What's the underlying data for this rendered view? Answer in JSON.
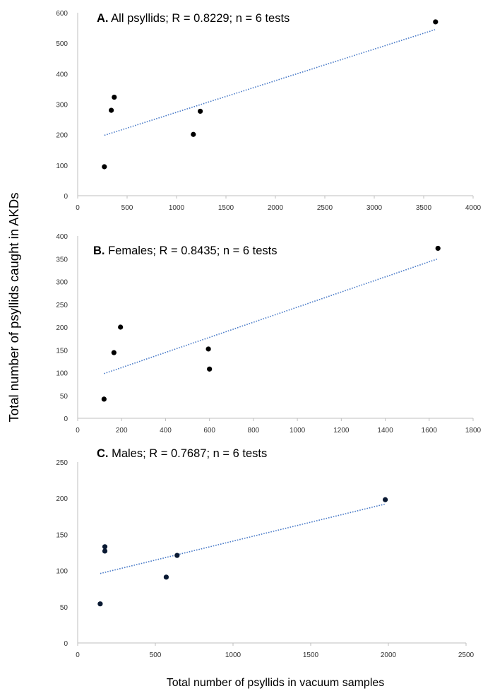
{
  "chart_data": [
    {
      "type": "scatter",
      "panel_letter": "A",
      "title": "All psyllids; R = 0.8229; n = 6 tests",
      "xlim": [
        0,
        4000
      ],
      "ylim": [
        0,
        600
      ],
      "xticks": [
        0,
        500,
        1000,
        1500,
        2000,
        2500,
        3000,
        3500,
        4000
      ],
      "yticks": [
        0,
        100,
        200,
        300,
        400,
        500,
        600
      ],
      "points": [
        {
          "x": 270,
          "y": 95
        },
        {
          "x": 340,
          "y": 280
        },
        {
          "x": 370,
          "y": 323
        },
        {
          "x": 1170,
          "y": 201
        },
        {
          "x": 1240,
          "y": 277
        },
        {
          "x": 3620,
          "y": 570
        }
      ],
      "trendline": {
        "x": [
          270,
          3620
        ],
        "y": [
          198,
          545
        ]
      },
      "marker_color": "#000000",
      "trendline_color": "#4a7bc8",
      "grid": false,
      "legend": "none"
    },
    {
      "type": "scatter",
      "panel_letter": "B",
      "title": "Females; R = 0.8435; n = 6 tests",
      "xlim": [
        0,
        1800
      ],
      "ylim": [
        0,
        400
      ],
      "xticks": [
        0,
        200,
        400,
        600,
        800,
        1000,
        1200,
        1400,
        1600,
        1800
      ],
      "yticks": [
        0,
        50,
        100,
        150,
        200,
        250,
        300,
        350,
        400
      ],
      "points": [
        {
          "x": 120,
          "y": 42
        },
        {
          "x": 165,
          "y": 144
        },
        {
          "x": 195,
          "y": 200
        },
        {
          "x": 595,
          "y": 152
        },
        {
          "x": 600,
          "y": 108
        },
        {
          "x": 1640,
          "y": 373
        }
      ],
      "trendline": {
        "x": [
          120,
          1640
        ],
        "y": [
          98,
          350
        ]
      },
      "marker_color": "#000000",
      "trendline_color": "#4a7bc8",
      "grid": false,
      "legend": "none"
    },
    {
      "type": "scatter",
      "panel_letter": "C",
      "title": "Males; R = 0.7687; n = 6 tests",
      "xlim": [
        0,
        2500
      ],
      "ylim": [
        0,
        250
      ],
      "xticks": [
        0,
        500,
        1000,
        1500,
        2000,
        2500
      ],
      "yticks": [
        0,
        50,
        100,
        150,
        200,
        250
      ],
      "points": [
        {
          "x": 145,
          "y": 54
        },
        {
          "x": 175,
          "y": 127
        },
        {
          "x": 175,
          "y": 133
        },
        {
          "x": 570,
          "y": 91
        },
        {
          "x": 640,
          "y": 121
        },
        {
          "x": 1980,
          "y": 198
        }
      ],
      "trendline": {
        "x": [
          145,
          1980
        ],
        "y": [
          96,
          192
        ]
      },
      "marker_color": "#0a1a33",
      "trendline_color": "#4a7bc8",
      "grid": false,
      "legend": "none"
    }
  ],
  "ylabel": "Total number of psyllids caught in AKDs",
  "xlabel": "Total number of psyllids in vacuum samples"
}
